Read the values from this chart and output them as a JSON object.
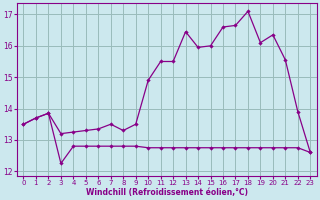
{
  "xlabel": "Windchill (Refroidissement éolien,°C)",
  "bg_color": "#cce8ee",
  "line_color": "#880088",
  "grid_color": "#99bbbb",
  "xlim": [
    -0.5,
    23.5
  ],
  "ylim": [
    11.85,
    17.35
  ],
  "yticks": [
    12,
    13,
    14,
    15,
    16,
    17
  ],
  "xticks": [
    0,
    1,
    2,
    3,
    4,
    5,
    6,
    7,
    8,
    9,
    10,
    11,
    12,
    13,
    14,
    15,
    16,
    17,
    18,
    19,
    20,
    21,
    22,
    23
  ],
  "line_upper_x": [
    0,
    1,
    2,
    3,
    4,
    5,
    6,
    7,
    8,
    9,
    10,
    11,
    12,
    13,
    14,
    15,
    16,
    17,
    18,
    19,
    20,
    21,
    22,
    23
  ],
  "line_upper_y": [
    13.5,
    13.7,
    13.85,
    13.2,
    13.25,
    13.3,
    13.35,
    13.5,
    13.3,
    13.5,
    14.9,
    15.5,
    15.5,
    16.45,
    15.95,
    16.0,
    16.6,
    16.65,
    17.1,
    16.1,
    16.35,
    15.55,
    13.9,
    12.6
  ],
  "line_lower_x": [
    0,
    1,
    2,
    3,
    4,
    5,
    6,
    7,
    8,
    9,
    10,
    11,
    12,
    13,
    14,
    15,
    16,
    17,
    18,
    19,
    20,
    21,
    22,
    23
  ],
  "line_lower_y": [
    13.5,
    13.7,
    13.85,
    12.25,
    12.8,
    12.8,
    12.8,
    12.8,
    12.8,
    12.8,
    12.75,
    12.75,
    12.75,
    12.75,
    12.75,
    12.75,
    12.75,
    12.75,
    12.75,
    12.75,
    12.75,
    12.75,
    12.75,
    12.6
  ]
}
